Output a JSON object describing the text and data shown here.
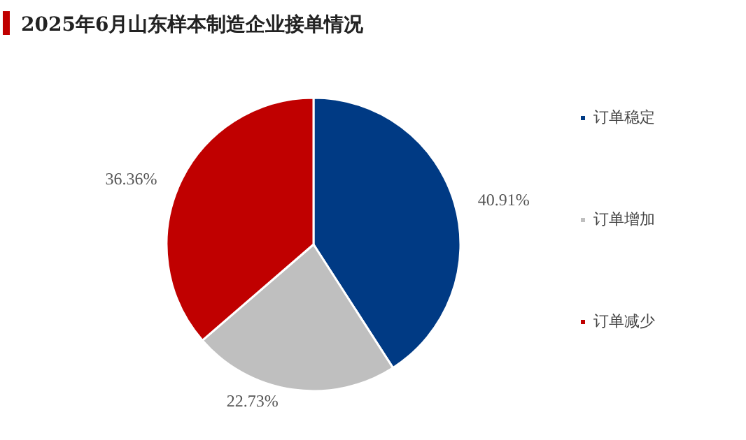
{
  "chart_data": {
    "type": "pie",
    "title": "2025年6月山东样本制造企业接单情况",
    "categories": [
      "订单稳定",
      "订单增加",
      "订单减少"
    ],
    "values": [
      40.91,
      22.73,
      36.36
    ],
    "colors": [
      "#003a84",
      "#bfbfbf",
      "#c00000"
    ],
    "value_labels": [
      "40.91%",
      "22.73%",
      "36.36%"
    ],
    "legend": "right"
  }
}
